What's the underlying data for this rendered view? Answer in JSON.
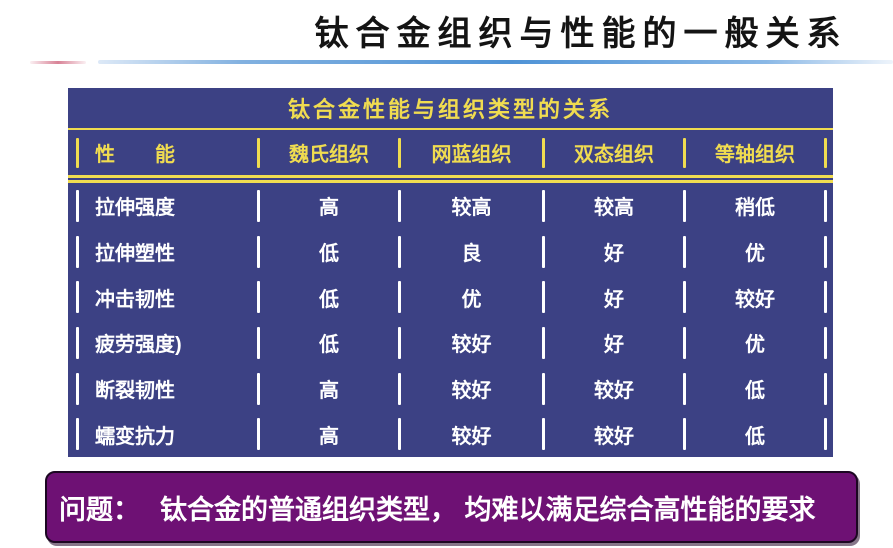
{
  "slide_title": "钛合金组织与性能的一般关系",
  "table": {
    "title": "钛合金性能与组织类型的关系",
    "columns": [
      "性　　能",
      "魏氏组织",
      "网蓝组织",
      "双态组织",
      "等轴组织"
    ],
    "rows": [
      {
        "label": "拉伸强度",
        "values": [
          "高",
          "较高",
          "较高",
          "稍低"
        ]
      },
      {
        "label": "拉伸塑性",
        "values": [
          "低",
          "良",
          "好",
          "优"
        ]
      },
      {
        "label": "冲击韧性",
        "values": [
          "低",
          "优",
          "好",
          "较好"
        ]
      },
      {
        "label": "疲劳强度)",
        "values": [
          "低",
          "较好",
          "好",
          "优"
        ]
      },
      {
        "label": "断裂韧性",
        "values": [
          "高",
          "较好",
          "较好",
          "低"
        ]
      },
      {
        "label": "蠕变抗力",
        "values": [
          "高",
          "较好",
          "较好",
          "低"
        ]
      }
    ]
  },
  "problem_banner": {
    "prefix": "问题：",
    "text": "钛合金的普通组织类型， 均难以满足综合高性能的要求"
  },
  "colors": {
    "table_background": "#3c4184",
    "accent_yellow": "#f0dc50",
    "table_text_white": "#ffffff",
    "banner_purple": "#6e1174",
    "title_black": "#141414",
    "underline_blue": "#4f93d6",
    "underline_pink": "#d88296"
  }
}
